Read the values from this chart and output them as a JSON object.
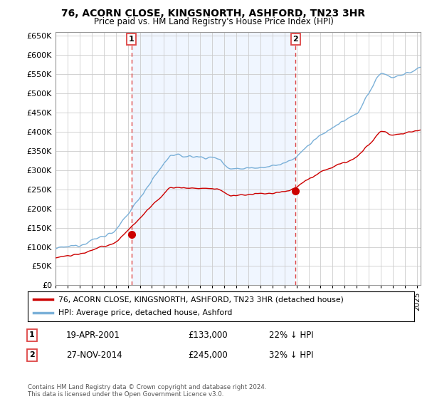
{
  "title": "76, ACORN CLOSE, KINGSNORTH, ASHFORD, TN23 3HR",
  "subtitle": "Price paid vs. HM Land Registry's House Price Index (HPI)",
  "legend_line1": "76, ACORN CLOSE, KINGSNORTH, ASHFORD, TN23 3HR (detached house)",
  "legend_line2": "HPI: Average price, detached house, Ashford",
  "annotation1": [
    "1",
    "19-APR-2001",
    "£133,000",
    "22% ↓ HPI"
  ],
  "annotation2": [
    "2",
    "27-NOV-2014",
    "£245,000",
    "32% ↓ HPI"
  ],
  "footnote": "Contains HM Land Registry data © Crown copyright and database right 2024.\nThis data is licensed under the Open Government Licence v3.0.",
  "hpi_color": "#7ab0d8",
  "hpi_fill_color": "#ddeeff",
  "price_color": "#cc0000",
  "marker_color": "#cc0000",
  "vline_color": "#dd4444",
  "ylim": [
    0,
    660000
  ],
  "yticks": [
    0,
    50000,
    100000,
    150000,
    200000,
    250000,
    300000,
    350000,
    400000,
    450000,
    500000,
    550000,
    600000,
    650000
  ],
  "sale1_x": 2001.3,
  "sale1_y": 133000,
  "sale2_x": 2014.92,
  "sale2_y": 245000,
  "xmin": 1995,
  "xmax": 2025.3,
  "bg_color": "#f0f6ff"
}
